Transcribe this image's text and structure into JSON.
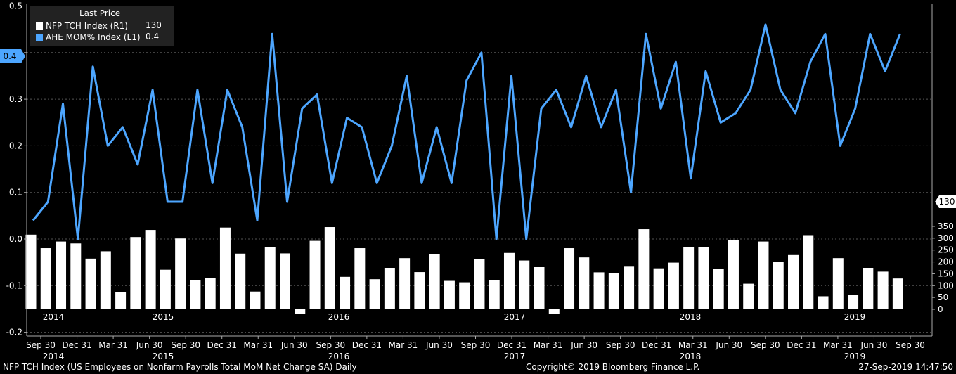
{
  "legend": {
    "header": "Last Price",
    "items": [
      {
        "name": "NFP TCH Index  (R1)",
        "value": "130",
        "color": "#ffffff"
      },
      {
        "name": "AHE MOM% Index  (L1)",
        "value": "0.4",
        "color": "#4da6ff"
      }
    ]
  },
  "badges": {
    "left_value": "0.4",
    "right_value": "130"
  },
  "footer": {
    "description": "NFP TCH Index (US Employees on Nonfarm Payrolls Total MoM Net Change SA)  Daily",
    "copyright": "Copyright© 2019 Bloomberg Finance L.P.",
    "timestamp": "27-Sep-2019 14:47:50"
  },
  "chart_data": {
    "type": "bar",
    "y_left": {
      "ticks": [
        "0.5",
        "0.4",
        "0.3",
        "0.2",
        "0.1",
        "0.0",
        "-0.1",
        "-0.2"
      ],
      "range": [
        -0.2,
        0.5
      ]
    },
    "y_right": {
      "ticks": [
        "350",
        "300",
        "250",
        "200",
        "150",
        "100",
        "50",
        "0"
      ],
      "range": [
        0,
        350
      ]
    },
    "x_tick_labels": [
      "Sep 30",
      "Dec 31",
      "Mar 31",
      "Jun 30",
      "Sep 30",
      "Dec 31",
      "Mar 31",
      "Jun 30",
      "Sep 30",
      "Dec 31",
      "Mar 31",
      "Jun 30",
      "Sep 30",
      "Dec 31",
      "Mar 31",
      "Jun 30",
      "Sep 30",
      "Dec 31",
      "Mar 31",
      "Jun 30",
      "Sep 30",
      "Dec 31",
      "Mar 31",
      "Jun 30",
      "Sep 30"
    ],
    "year_labels": [
      "2014",
      "2015",
      "2016",
      "2017",
      "2018",
      "2019"
    ],
    "series": [
      {
        "name": "NFP TCH Index  (R1)",
        "axis": "right",
        "type": "bar",
        "color": "#ffffff",
        "values": [
          315,
          258,
          286,
          278,
          214,
          245,
          74,
          305,
          335,
          167,
          299,
          122,
          132,
          345,
          235,
          75,
          262,
          236,
          -20,
          289,
          347,
          137,
          258,
          127,
          175,
          216,
          157,
          233,
          120,
          114,
          213,
          124,
          238,
          206,
          178,
          -18,
          258,
          219,
          156,
          154,
          180,
          338,
          173,
          197,
          263,
          262,
          171,
          293,
          108,
          286,
          199,
          229,
          313,
          55,
          216,
          62,
          175,
          159,
          130
        ],
        "markers_right_badge": 130
      },
      {
        "name": "AHE MOM% Index  (L1)",
        "axis": "left",
        "type": "line",
        "color": "#4da6ff",
        "values": [
          0.04,
          0.08,
          0.29,
          0.0,
          0.37,
          0.2,
          0.24,
          0.16,
          0.32,
          0.08,
          0.08,
          0.32,
          0.12,
          0.32,
          0.24,
          0.04,
          0.44,
          0.08,
          0.28,
          0.31,
          0.12,
          0.26,
          0.24,
          0.12,
          0.2,
          0.35,
          0.12,
          0.24,
          0.12,
          0.34,
          0.4,
          0.0,
          0.35,
          0.0,
          0.28,
          0.32,
          0.24,
          0.35,
          0.24,
          0.32,
          0.1,
          0.44,
          0.28,
          0.38,
          0.13,
          0.36,
          0.25,
          0.27,
          0.32,
          0.46,
          0.32,
          0.27,
          0.38,
          0.44,
          0.2,
          0.28,
          0.44,
          0.36,
          0.44
        ]
      }
    ]
  }
}
